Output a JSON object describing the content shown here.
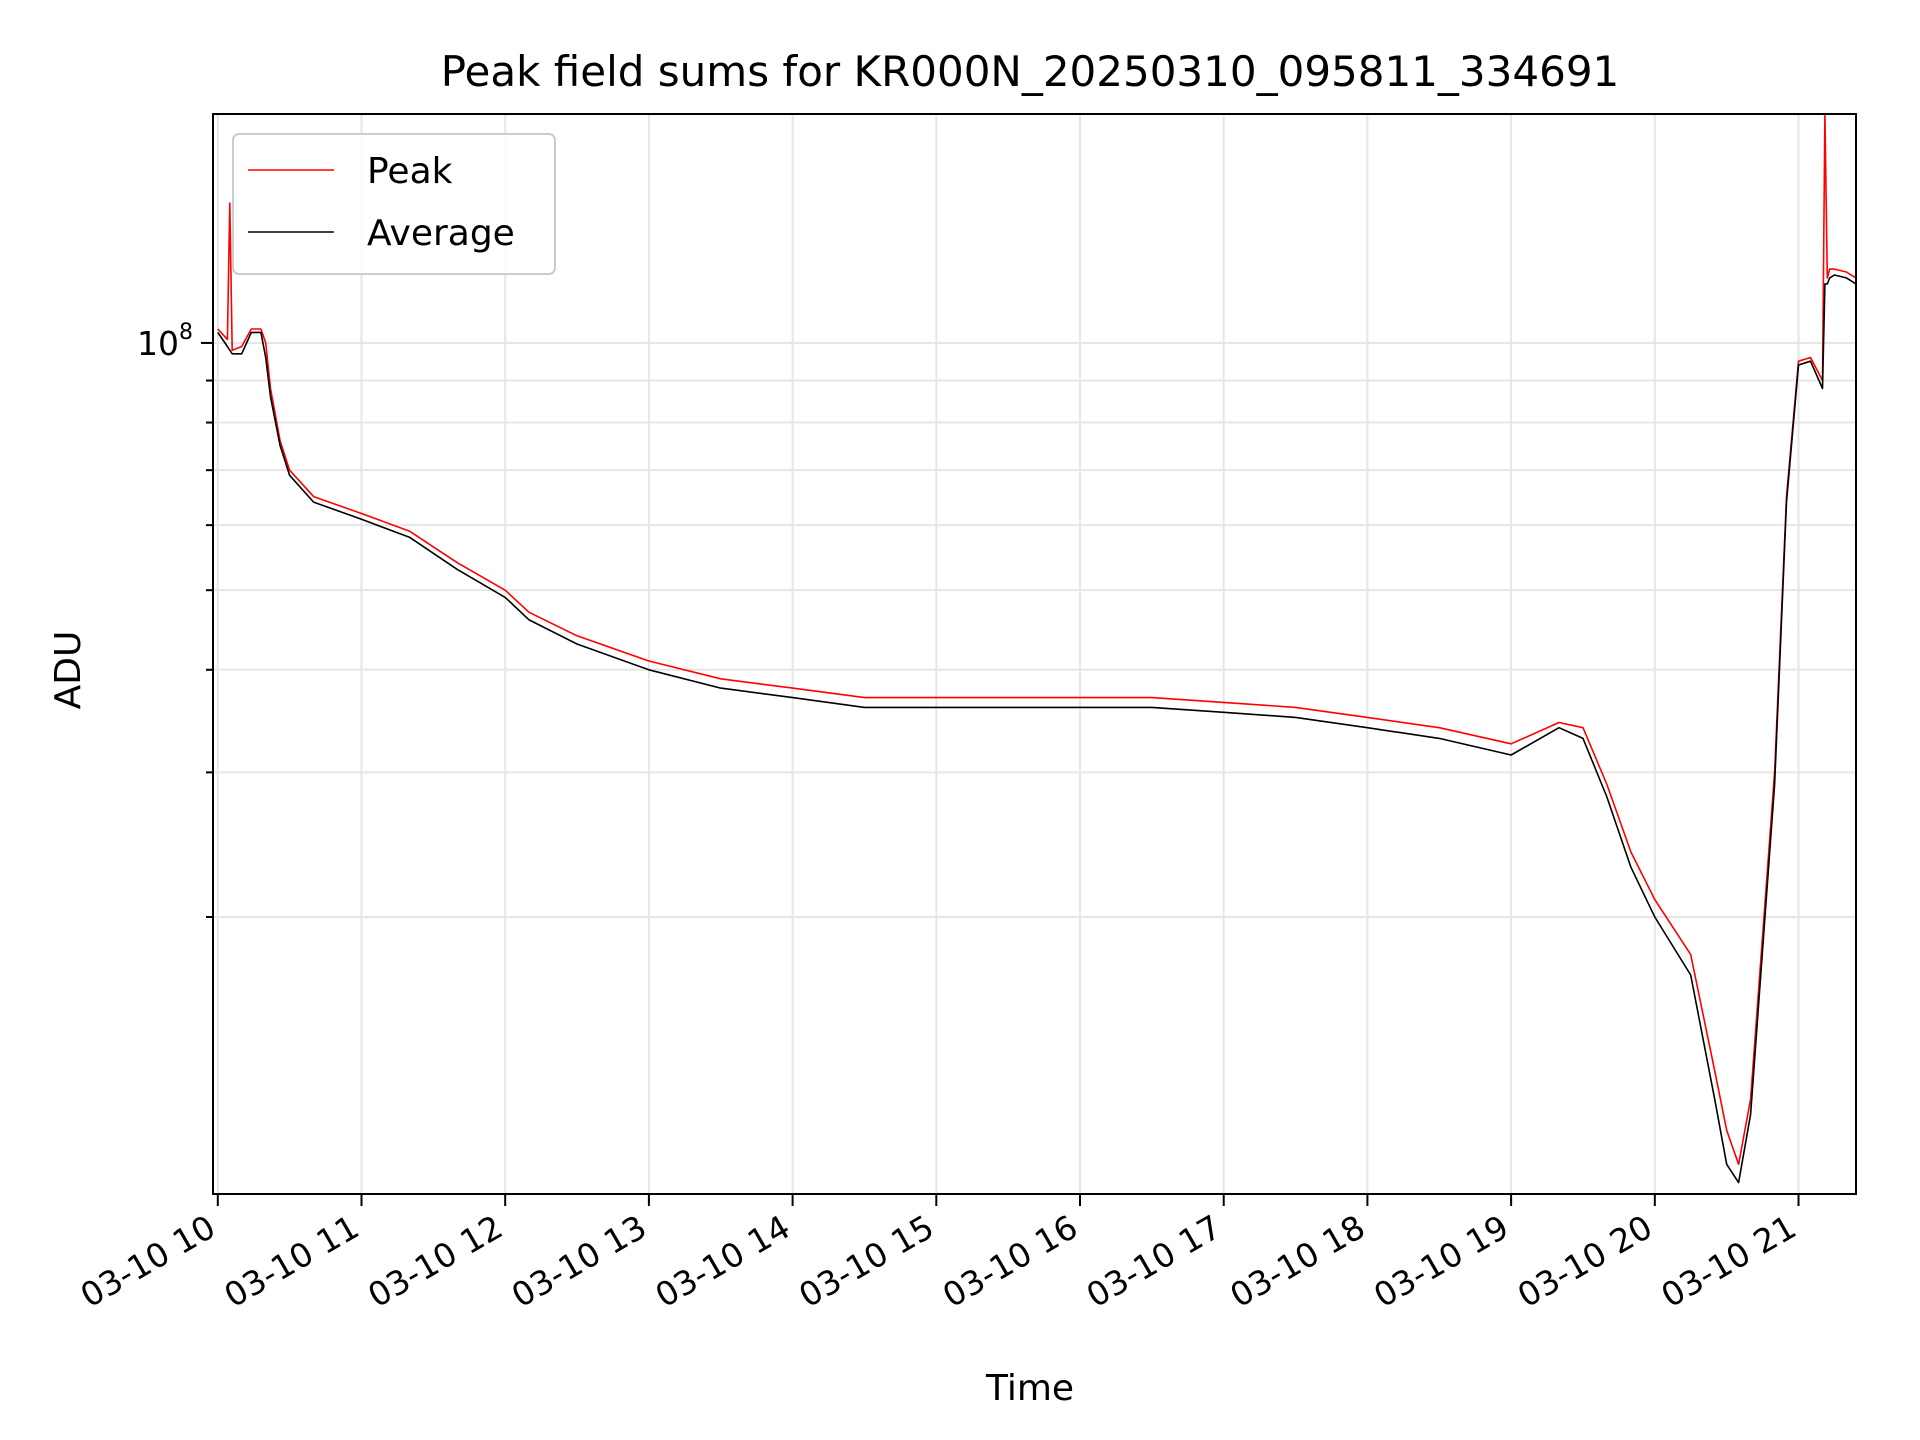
{
  "chart_data": {
    "type": "line",
    "title": "Peak field sums for KR000N_20250310_095811_334691",
    "xlabel": "Time",
    "ylabel": "ADU",
    "y_scale": "log",
    "xlim": [
      "03-10 09:58",
      "03-10 21:24"
    ],
    "ylim": [
      9200000.0,
      190000000.0
    ],
    "x_ticks": [
      "03-10 10",
      "03-10 11",
      "03-10 12",
      "03-10 13",
      "03-10 14",
      "03-10 15",
      "03-10 16",
      "03-10 17",
      "03-10 18",
      "03-10 19",
      "03-10 20",
      "03-10 21"
    ],
    "y_major_tick_label": "10^8",
    "y_major_tick_value": 100000000.0,
    "y_minor_ticks": [
      20000000.0,
      30000000.0,
      40000000.0,
      50000000.0,
      60000000.0,
      70000000.0,
      80000000.0,
      90000000.0
    ],
    "grid": true,
    "legend": {
      "position": "top-left",
      "entries": [
        "Peak",
        "Average"
      ]
    },
    "series": [
      {
        "name": "Peak",
        "color": "#ff0000",
        "x": [
          "10:00",
          "10:04",
          "10:05",
          "10:06",
          "10:10",
          "10:14",
          "10:18",
          "10:20",
          "10:22",
          "10:26",
          "10:30",
          "10:40",
          "11:00",
          "11:20",
          "11:40",
          "12:00",
          "12:10",
          "12:30",
          "13:00",
          "13:30",
          "14:00",
          "14:30",
          "15:00",
          "15:30",
          "16:00",
          "16:30",
          "17:00",
          "17:30",
          "18:00",
          "18:30",
          "19:00",
          "19:20",
          "19:30",
          "19:40",
          "19:50",
          "20:00",
          "20:15",
          "20:25",
          "20:30",
          "20:35",
          "20:40",
          "20:50",
          "20:55",
          "21:00",
          "21:05",
          "21:10",
          "21:11",
          "21:12",
          "21:13",
          "21:15",
          "21:20",
          "21:24"
        ],
        "y": [
          104000000,
          101000000,
          148000000,
          98000000,
          99000000,
          104000000,
          104000000,
          100000000,
          88000000,
          76000000,
          70000000,
          65000000,
          62000000,
          59000000,
          54000000,
          50000000,
          47000000,
          44000000,
          41000000,
          39000000,
          38000000,
          37000000,
          37000000,
          37000000,
          37000000,
          37000000,
          36500000,
          36000000,
          35000000,
          34000000,
          32500000,
          34500000,
          34000000,
          29000000,
          24000000,
          21000000,
          18000000,
          13000000,
          11000000,
          10000000,
          12000000,
          30000000,
          65000000,
          95000000,
          96000000,
          90000000,
          190000000,
          120000000,
          123000000,
          123000000,
          122000000,
          120000000
        ]
      },
      {
        "name": "Average",
        "color": "#000000",
        "x": [
          "10:00",
          "10:04",
          "10:05",
          "10:06",
          "10:10",
          "10:14",
          "10:18",
          "10:20",
          "10:22",
          "10:26",
          "10:30",
          "10:40",
          "11:00",
          "11:20",
          "11:40",
          "12:00",
          "12:10",
          "12:30",
          "13:00",
          "13:30",
          "14:00",
          "14:30",
          "15:00",
          "15:30",
          "16:00",
          "16:30",
          "17:00",
          "17:30",
          "18:00",
          "18:30",
          "19:00",
          "19:20",
          "19:30",
          "19:40",
          "19:50",
          "20:00",
          "20:15",
          "20:25",
          "20:30",
          "20:35",
          "20:40",
          "20:50",
          "20:55",
          "21:00",
          "21:05",
          "21:10",
          "21:11",
          "21:12",
          "21:13",
          "21:15",
          "21:20",
          "21:24"
        ],
        "y": [
          103000000,
          99000000,
          98000000,
          97000000,
          97000000,
          103000000,
          103000000,
          96000000,
          86000000,
          75000000,
          69000000,
          64000000,
          61000000,
          58000000,
          53000000,
          49000000,
          46000000,
          43000000,
          40000000,
          38000000,
          37000000,
          36000000,
          36000000,
          36000000,
          36000000,
          36000000,
          35500000,
          35000000,
          34000000,
          33000000,
          31500000,
          34000000,
          33000000,
          28000000,
          23000000,
          20000000,
          17000000,
          12000000,
          10000000,
          9500000,
          11500000,
          29000000,
          64000000,
          94000000,
          95000000,
          88000000,
          118000000,
          118000000,
          120000000,
          121000000,
          120000000,
          118000000
        ]
      }
    ]
  }
}
